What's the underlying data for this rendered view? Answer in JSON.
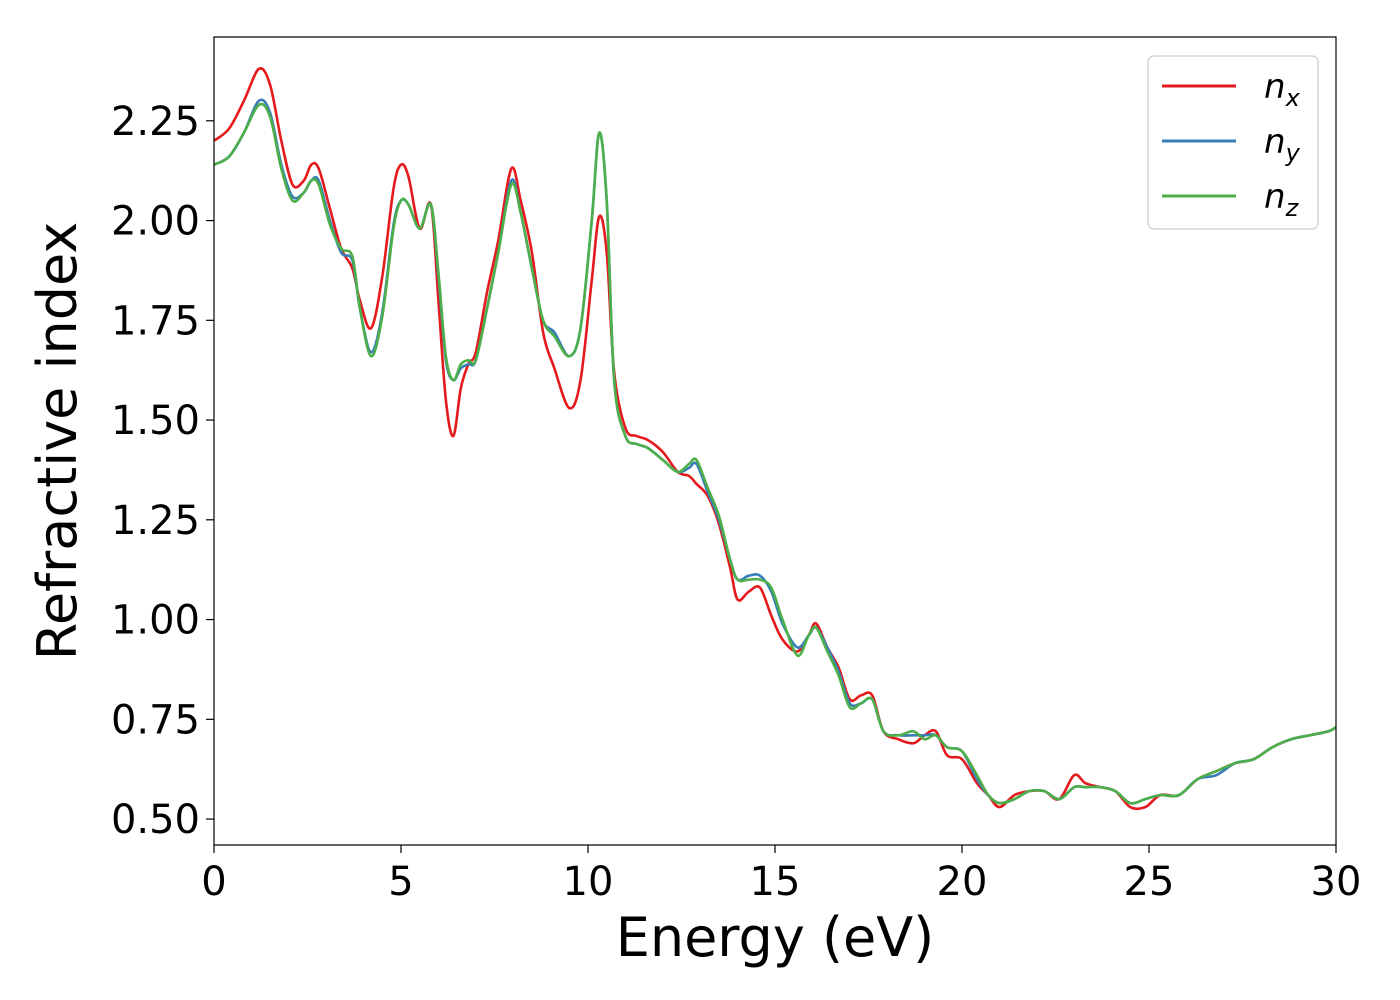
{
  "chart_data": {
    "type": "line",
    "title": "",
    "xlabel": "Energy (eV)",
    "ylabel": "Refractive index",
    "xlim": [
      0,
      30
    ],
    "ylim": [
      0.435,
      2.46
    ],
    "xticks": [
      0,
      5,
      10,
      15,
      20,
      25,
      30
    ],
    "yticks": [
      0.5,
      0.75,
      1.0,
      1.25,
      1.5,
      1.75,
      2.0,
      2.25
    ],
    "xtick_labels": [
      "0",
      "5",
      "10",
      "15",
      "20",
      "25",
      "30"
    ],
    "ytick_labels": [
      "0.50",
      "0.75",
      "1.00",
      "1.25",
      "1.50",
      "1.75",
      "2.00",
      "2.25"
    ],
    "grid": false,
    "legend_position": "top-right",
    "series": [
      {
        "name": "n",
        "subscript": "x",
        "color": "#e41a1c",
        "x": [
          0,
          0.4,
          0.8,
          1.2,
          1.5,
          1.8,
          2.1,
          2.4,
          2.6,
          2.8,
          3.1,
          3.4,
          3.7,
          3.9,
          4.2,
          4.5,
          4.8,
          5.0,
          5.2,
          5.5,
          5.8,
          6.0,
          6.2,
          6.4,
          6.6,
          6.8,
          7.0,
          7.3,
          7.6,
          7.95,
          8.2,
          8.5,
          8.8,
          9.1,
          9.5,
          9.8,
          10.1,
          10.3,
          10.5,
          10.7,
          11.0,
          11.3,
          11.6,
          12.0,
          12.4,
          12.7,
          12.9,
          13.2,
          13.5,
          13.8,
          14.0,
          14.3,
          14.6,
          14.9,
          15.2,
          15.6,
          15.9,
          16.1,
          16.4,
          16.7,
          17.0,
          17.3,
          17.6,
          17.9,
          18.3,
          18.7,
          19.0,
          19.3,
          19.6,
          20.0,
          20.4,
          20.7,
          21.0,
          21.4,
          21.8,
          22.2,
          22.6,
          23.0,
          23.3,
          23.7,
          24.1,
          24.5,
          24.9,
          25.3,
          25.8,
          26.3,
          26.8,
          27.3,
          27.8,
          28.3,
          28.8,
          29.3,
          29.8,
          30.0
        ],
        "y": [
          2.2,
          2.23,
          2.3,
          2.38,
          2.34,
          2.2,
          2.09,
          2.1,
          2.14,
          2.13,
          2.03,
          1.93,
          1.88,
          1.8,
          1.73,
          1.86,
          2.08,
          2.14,
          2.11,
          1.98,
          2.04,
          1.8,
          1.55,
          1.46,
          1.58,
          1.64,
          1.67,
          1.82,
          1.95,
          2.13,
          2.05,
          1.92,
          1.72,
          1.63,
          1.53,
          1.6,
          1.85,
          2.01,
          1.92,
          1.62,
          1.48,
          1.46,
          1.45,
          1.42,
          1.37,
          1.36,
          1.34,
          1.31,
          1.24,
          1.13,
          1.05,
          1.07,
          1.08,
          1.01,
          0.95,
          0.92,
          0.96,
          0.99,
          0.93,
          0.88,
          0.8,
          0.81,
          0.81,
          0.72,
          0.7,
          0.69,
          0.71,
          0.72,
          0.66,
          0.65,
          0.59,
          0.56,
          0.53,
          0.56,
          0.57,
          0.57,
          0.55,
          0.61,
          0.59,
          0.58,
          0.57,
          0.53,
          0.53,
          0.56,
          0.56,
          0.6,
          0.62,
          0.64,
          0.65,
          0.68,
          0.7,
          0.71,
          0.72,
          0.73
        ]
      },
      {
        "name": "n",
        "subscript": "y",
        "color": "#377eb8",
        "x": [
          0,
          0.4,
          0.8,
          1.2,
          1.5,
          1.8,
          2.1,
          2.4,
          2.6,
          2.8,
          3.1,
          3.4,
          3.7,
          3.9,
          4.2,
          4.5,
          4.8,
          5.0,
          5.2,
          5.5,
          5.8,
          6.0,
          6.2,
          6.4,
          6.6,
          6.8,
          7.0,
          7.3,
          7.6,
          7.95,
          8.2,
          8.5,
          8.8,
          9.1,
          9.5,
          9.8,
          10.1,
          10.3,
          10.5,
          10.7,
          11.0,
          11.3,
          11.6,
          12.0,
          12.4,
          12.7,
          12.9,
          13.2,
          13.5,
          13.8,
          14.0,
          14.3,
          14.6,
          14.9,
          15.2,
          15.6,
          15.9,
          16.1,
          16.4,
          16.7,
          17.0,
          17.3,
          17.6,
          17.9,
          18.3,
          18.7,
          19.0,
          19.3,
          19.6,
          20.0,
          20.4,
          20.7,
          21.0,
          21.4,
          21.8,
          22.2,
          22.6,
          23.0,
          23.3,
          23.7,
          24.1,
          24.5,
          24.9,
          25.3,
          25.8,
          26.3,
          26.8,
          27.3,
          27.8,
          28.3,
          28.8,
          29.3,
          29.8,
          30.0
        ],
        "y": [
          2.14,
          2.16,
          2.22,
          2.3,
          2.27,
          2.14,
          2.06,
          2.07,
          2.1,
          2.1,
          2.0,
          1.92,
          1.9,
          1.78,
          1.67,
          1.77,
          1.99,
          2.05,
          2.04,
          1.98,
          2.04,
          1.86,
          1.65,
          1.6,
          1.63,
          1.64,
          1.65,
          1.78,
          1.92,
          2.1,
          2.02,
          1.88,
          1.75,
          1.72,
          1.66,
          1.73,
          2.0,
          2.22,
          2.05,
          1.6,
          1.46,
          1.44,
          1.43,
          1.4,
          1.37,
          1.38,
          1.39,
          1.32,
          1.25,
          1.15,
          1.1,
          1.11,
          1.11,
          1.07,
          0.99,
          0.93,
          0.96,
          0.98,
          0.93,
          0.87,
          0.79,
          0.79,
          0.8,
          0.72,
          0.71,
          0.71,
          0.71,
          0.71,
          0.68,
          0.67,
          0.6,
          0.56,
          0.54,
          0.55,
          0.57,
          0.57,
          0.55,
          0.58,
          0.58,
          0.58,
          0.57,
          0.54,
          0.55,
          0.56,
          0.56,
          0.6,
          0.61,
          0.64,
          0.65,
          0.68,
          0.7,
          0.71,
          0.72,
          0.73
        ]
      },
      {
        "name": "n",
        "subscript": "z",
        "color": "#4daf4a",
        "x": [
          0,
          0.4,
          0.8,
          1.2,
          1.5,
          1.8,
          2.1,
          2.4,
          2.6,
          2.8,
          3.1,
          3.4,
          3.7,
          3.9,
          4.2,
          4.5,
          4.8,
          5.0,
          5.2,
          5.5,
          5.8,
          6.0,
          6.2,
          6.4,
          6.6,
          6.8,
          7.0,
          7.3,
          7.6,
          7.95,
          8.2,
          8.5,
          8.8,
          9.1,
          9.5,
          9.8,
          10.1,
          10.3,
          10.5,
          10.7,
          11.0,
          11.3,
          11.6,
          12.0,
          12.4,
          12.7,
          12.9,
          13.2,
          13.5,
          13.8,
          14.0,
          14.3,
          14.6,
          14.9,
          15.2,
          15.6,
          15.9,
          16.1,
          16.4,
          16.7,
          17.0,
          17.3,
          17.6,
          17.9,
          18.3,
          18.7,
          19.0,
          19.3,
          19.6,
          20.0,
          20.4,
          20.7,
          21.0,
          21.4,
          21.8,
          22.2,
          22.6,
          23.0,
          23.3,
          23.7,
          24.1,
          24.5,
          24.9,
          25.3,
          25.8,
          26.3,
          26.8,
          27.3,
          27.8,
          28.3,
          28.8,
          29.3,
          29.8,
          30.0
        ],
        "y": [
          2.14,
          2.16,
          2.22,
          2.29,
          2.26,
          2.13,
          2.05,
          2.07,
          2.1,
          2.09,
          1.99,
          1.93,
          1.91,
          1.78,
          1.66,
          1.76,
          1.98,
          2.05,
          2.04,
          1.98,
          2.04,
          1.87,
          1.66,
          1.6,
          1.64,
          1.65,
          1.65,
          1.78,
          1.92,
          2.09,
          2.02,
          1.88,
          1.75,
          1.71,
          1.66,
          1.73,
          2.0,
          2.22,
          2.05,
          1.6,
          1.46,
          1.44,
          1.43,
          1.4,
          1.37,
          1.39,
          1.4,
          1.33,
          1.26,
          1.15,
          1.1,
          1.1,
          1.1,
          1.08,
          1.0,
          0.91,
          0.96,
          0.98,
          0.92,
          0.86,
          0.78,
          0.79,
          0.8,
          0.72,
          0.71,
          0.72,
          0.7,
          0.71,
          0.68,
          0.67,
          0.61,
          0.56,
          0.54,
          0.55,
          0.57,
          0.57,
          0.55,
          0.58,
          0.58,
          0.58,
          0.57,
          0.54,
          0.55,
          0.56,
          0.56,
          0.6,
          0.62,
          0.64,
          0.65,
          0.68,
          0.7,
          0.71,
          0.72,
          0.73
        ]
      }
    ]
  }
}
